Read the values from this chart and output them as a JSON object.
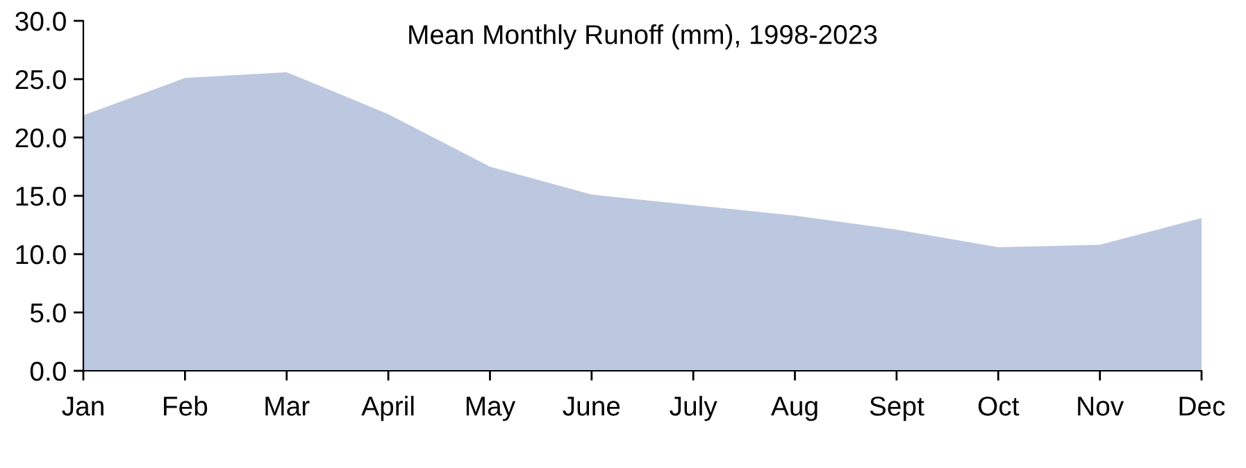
{
  "chart_data": {
    "type": "area",
    "title": "Mean Monthly Runoff (mm), 1998-2023",
    "categories": [
      "Jan",
      "Feb",
      "Mar",
      "April",
      "May",
      "June",
      "July",
      "Aug",
      "Sept",
      "Oct",
      "Nov",
      "Dec"
    ],
    "series": [
      {
        "color": "#bcc8e0",
        "values": [
          21.9,
          25.1,
          25.6,
          22.0,
          17.5,
          15.1,
          14.2,
          13.3,
          12.1,
          10.6,
          10.8,
          13.1
        ]
      }
    ],
    "ylim": [
      0,
      30
    ],
    "yticks": [
      {
        "value": 0,
        "label": "0.0"
      },
      {
        "value": 5,
        "label": "5.0"
      },
      {
        "value": 10,
        "label": "10.0"
      },
      {
        "value": 15,
        "label": "15.0"
      },
      {
        "value": 20,
        "label": "20.0"
      },
      {
        "value": 25,
        "label": "25.0"
      },
      {
        "value": 30,
        "label": "30.0"
      }
    ],
    "grid": false,
    "legend": false
  }
}
